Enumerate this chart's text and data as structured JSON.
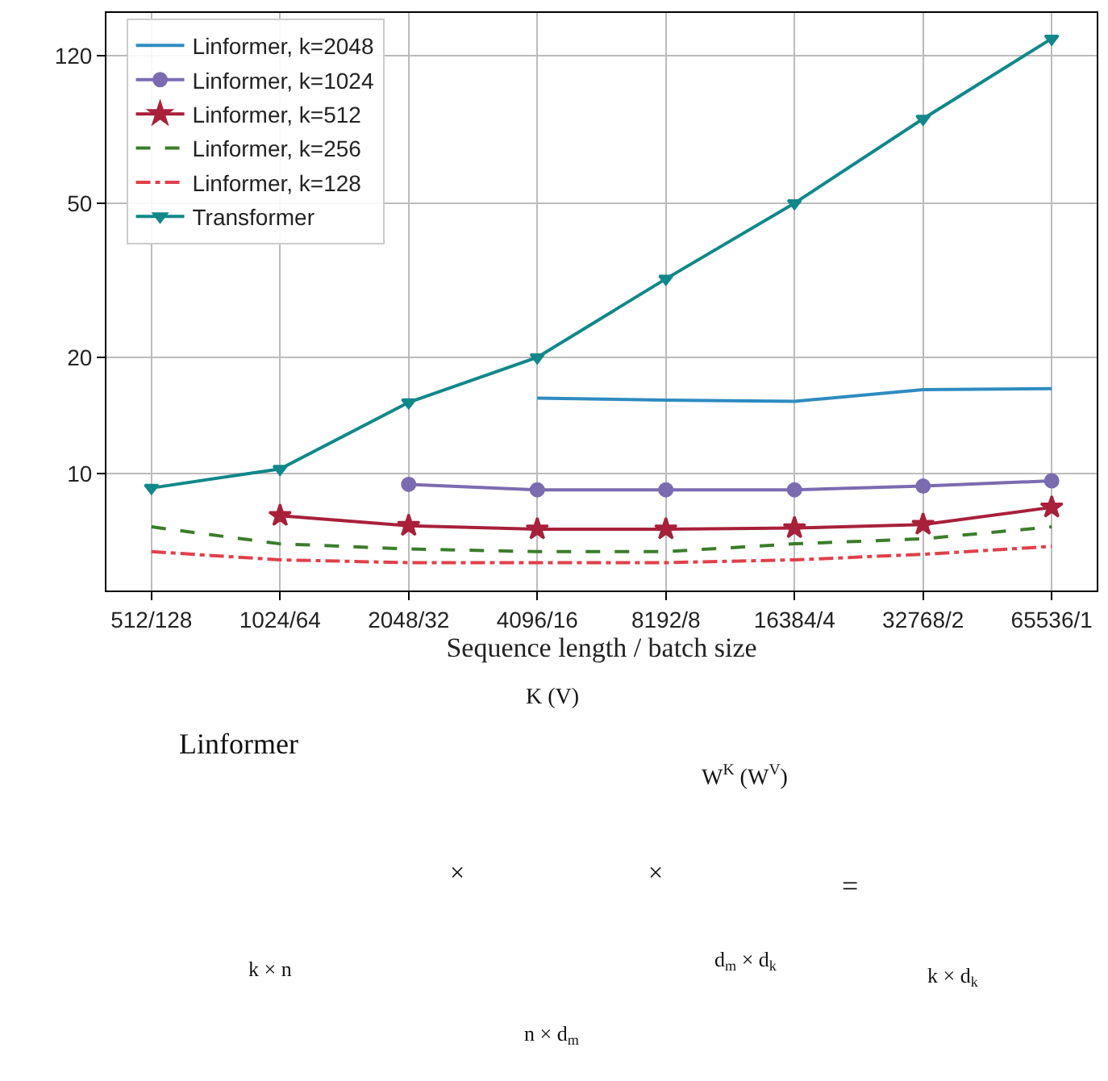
{
  "chart_data": [
    {
      "type": "line",
      "xlabel": "Sequence length / batch size",
      "categories": [
        "512/128",
        "1024/64",
        "2048/32",
        "4096/16",
        "8192/8",
        "16384/4",
        "32768/2",
        "65536/1"
      ],
      "series": [
        {
          "name": "Linformer, k=2048",
          "color": "#2e8bc0",
          "marker": "none",
          "line_style": "solid",
          "values": [
            null,
            null,
            null,
            15.7,
            15.5,
            15.4,
            16.5,
            16.6
          ]
        },
        {
          "name": "Linformer, k=1024",
          "color": "#7b6bb0",
          "marker": "circle",
          "line_style": "solid",
          "values": [
            null,
            null,
            9.4,
            9.1,
            9.1,
            9.1,
            9.3,
            9.6
          ]
        },
        {
          "name": "Linformer, k=512",
          "color": "#a8203a",
          "marker": "star",
          "line_style": "solid",
          "values": [
            null,
            7.8,
            7.35,
            7.2,
            7.2,
            7.25,
            7.4,
            8.2
          ]
        },
        {
          "name": "Linformer, k=256",
          "color": "#3a7d2a",
          "marker": "none",
          "line_style": "dashed",
          "values": [
            7.3,
            6.6,
            6.4,
            6.3,
            6.3,
            6.6,
            6.8,
            7.3
          ]
        },
        {
          "name": "Linformer, k=128",
          "color": "#e0404a",
          "marker": "none",
          "line_style": "dashdot",
          "values": [
            6.3,
            6.0,
            5.9,
            5.9,
            5.9,
            6.0,
            6.2,
            6.5
          ]
        },
        {
          "name": "Transformer",
          "color": "#11888a",
          "marker": "triangle",
          "line_style": "solid",
          "values": [
            9.2,
            10.3,
            15.3,
            20,
            31.9,
            50,
            82.6,
            133
          ]
        }
      ],
      "log": "y",
      "ylim": [
        5,
        155
      ],
      "yticks": [
        10,
        20,
        50,
        120
      ],
      "grid": true,
      "legend": "top left"
    },
    {
      "type": "other",
      "annotations": [
        "Linformer",
        "k × n",
        "×",
        "K (V)",
        "n × d$_{m}$",
        "×",
        "W$^{K}$ (W$^{V}$)",
        "d$_{m}$ × d$_{k}$",
        "=",
        "k × d$_{k}$"
      ]
    }
  ]
}
